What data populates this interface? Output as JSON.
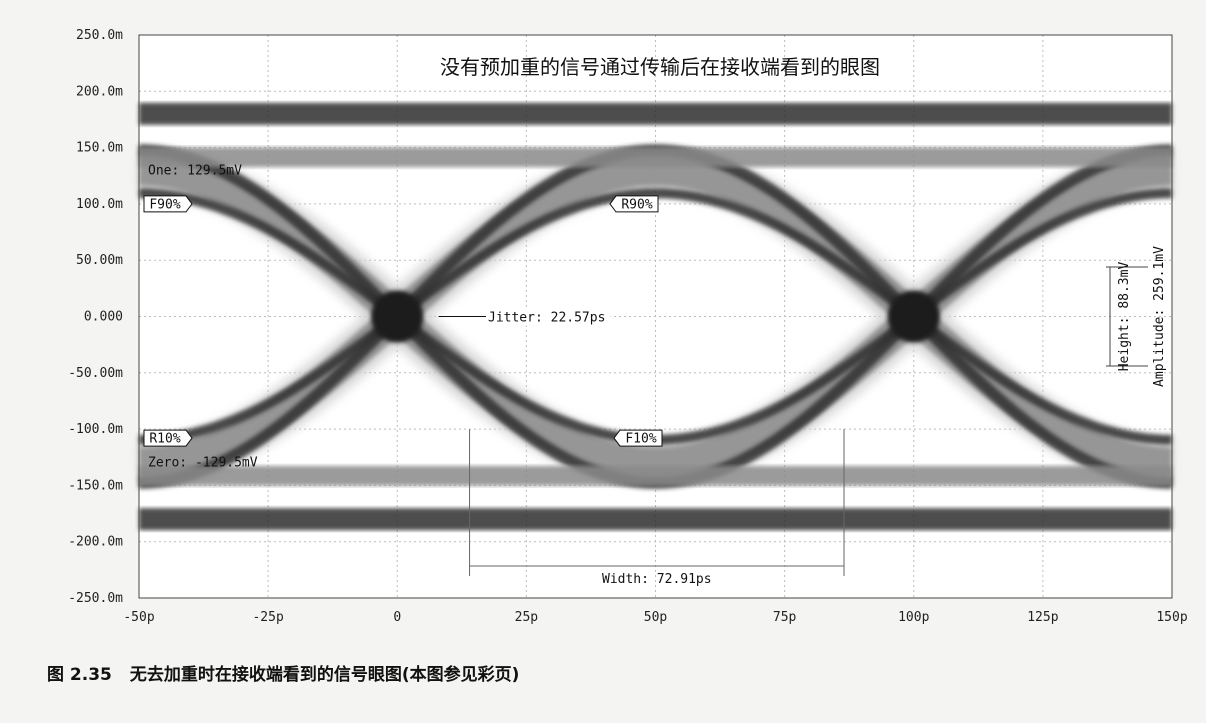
{
  "chart_data": {
    "type": "line",
    "title": "没有预加重的信号通过传输后在接收端看到的眼图",
    "xlabel": "",
    "ylabel": "",
    "xlim": [
      -50,
      150
    ],
    "ylim": [
      -250,
      250
    ],
    "grid": true,
    "x_ticks": [
      "-50p",
      "-25p",
      "0",
      "25p",
      "50p",
      "75p",
      "100p",
      "125p",
      "150p"
    ],
    "x_tick_values": [
      -50,
      -25,
      0,
      25,
      50,
      75,
      100,
      125,
      150
    ],
    "y_ticks": [
      "250.0m",
      "200.0m",
      "150.0m",
      "100.0m",
      "50.00m",
      "0.000",
      "-50.00m",
      "-100.0m",
      "-150.0m",
      "-200.0m",
      "-250.0m"
    ],
    "y_tick_values": [
      250,
      200,
      150,
      100,
      50,
      0,
      -50,
      -100,
      -150,
      -200,
      -250
    ],
    "eye": {
      "one_level": 129.5,
      "zero_level": -129.5,
      "outer_top": 190,
      "outer_bottom": -190,
      "crossings": [
        0,
        100
      ],
      "unit_interval": 100
    },
    "annotations": {
      "one": "One: 129.5mV",
      "zero": "Zero: -129.5mV",
      "jitter": "Jitter: 22.57ps",
      "width": "Width: 72.91ps",
      "height": "Height: 88.3mV",
      "amplitude": "Amplitude: 259.1mV",
      "f90": "F90%",
      "r90": "R90%",
      "r10": "R10%",
      "f10": "F10%"
    },
    "colors": {
      "band_dark": "#2e2e2e",
      "band_mid": "#8a8a8a",
      "band_light": "#d2d2d2",
      "background": "#ffffff",
      "grid": "#bdbdbd"
    }
  },
  "caption": {
    "number": "图 2.35",
    "text": "无去加重时在接收端看到的信号眼图(本图参见彩页)"
  }
}
